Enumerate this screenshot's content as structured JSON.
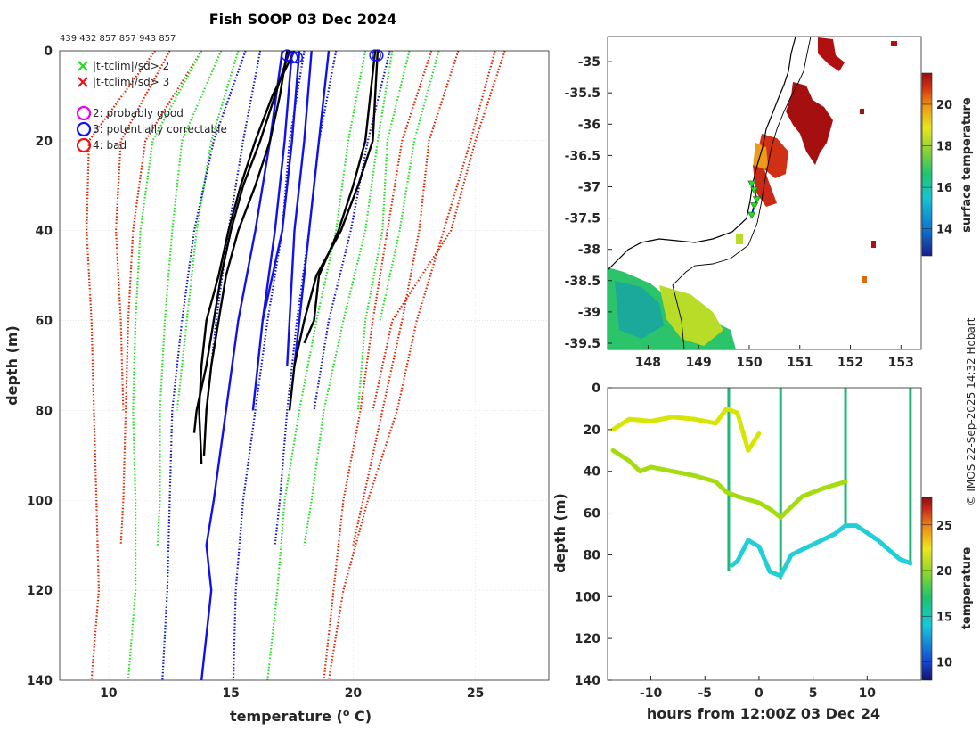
{
  "chart_data": [
    {
      "id": "profiles",
      "type": "line",
      "title": "Fish SOOP 03 Dec 2024",
      "subtitle": "439 432 857 857 943 857",
      "xlabel": "temperature (",
      "xlabel_sup": "o",
      "xlabel_tail": " C)",
      "ylabel": "depth (m)",
      "xlim": [
        8,
        28
      ],
      "ylim": [
        0,
        140
      ],
      "xticks": [
        10,
        15,
        20,
        25
      ],
      "yticks": [
        0,
        20,
        40,
        60,
        80,
        100,
        120,
        140
      ],
      "legend": [
        {
          "marker": "x",
          "color": "#22dd22",
          "label": "|t-tclim|/sd> 2"
        },
        {
          "marker": "x",
          "color": "#ee1111",
          "label": "|t-tclim|/sd> 3"
        },
        {
          "marker": "o",
          "color": "#ee00ee",
          "label": "2: probably good"
        },
        {
          "marker": "o",
          "color": "#1111ee",
          "label": "3: potentially correctable"
        },
        {
          "marker": "o",
          "color": "#ee1111",
          "label": "4: bad"
        }
      ],
      "flag_markers": [
        {
          "x": 17.3,
          "y": 1,
          "color": "#1111ee"
        },
        {
          "x": 17.5,
          "y": 1.5,
          "color": "#1111ee"
        },
        {
          "x": 17.7,
          "y": 1.5,
          "color": "#1111ee"
        },
        {
          "x": 20.9,
          "y": 1,
          "color": "#1111ee"
        },
        {
          "x": 21.0,
          "y": 1,
          "color": "#1111ee"
        }
      ],
      "series": [
        {
          "name": "clim-3sd-left-a",
          "style": "dotted",
          "color": "#dd2200",
          "depth": [
            0,
            20,
            40,
            60,
            80,
            100,
            120,
            140
          ],
          "temp": [
            11.9,
            9.2,
            9.1,
            9.3,
            9.4,
            9.5,
            9.6,
            9.3
          ]
        },
        {
          "name": "clim-3sd-left-b",
          "style": "dotted",
          "color": "#dd2200",
          "depth": [
            0,
            20,
            40,
            60,
            80
          ],
          "temp": [
            12.5,
            10.5,
            10.3,
            10.5,
            10.6
          ]
        },
        {
          "name": "clim-3sd-left-c",
          "style": "dotted",
          "color": "#dd2200",
          "depth": [
            0,
            20,
            40,
            60,
            80,
            100,
            110
          ],
          "temp": [
            13.8,
            11.5,
            11.0,
            10.8,
            10.7,
            10.6,
            10.5
          ]
        },
        {
          "name": "clim-2sd-left-a",
          "style": "dotted",
          "color": "#22dd22",
          "depth": [
            0,
            20,
            40,
            60,
            80,
            100,
            120,
            140
          ],
          "temp": [
            13.8,
            11.8,
            11.3,
            11.1,
            11.0,
            11.1,
            11.1,
            10.8
          ]
        },
        {
          "name": "clim-2sd-left-b",
          "style": "dotted",
          "color": "#22dd22",
          "depth": [
            0,
            20,
            40,
            60,
            80,
            100,
            110
          ],
          "temp": [
            14.6,
            13.0,
            12.6,
            12.3,
            12.1,
            12.1,
            12.0
          ]
        },
        {
          "name": "clim-2sd-left-c",
          "style": "dotted",
          "color": "#22dd22",
          "depth": [
            0,
            20,
            40,
            60,
            80
          ],
          "temp": [
            15.3,
            14.2,
            13.6,
            13.2,
            12.8
          ]
        },
        {
          "name": "clim-mean-a",
          "style": "dotted",
          "color": "#1111cc",
          "depth": [
            0,
            20,
            40,
            60,
            80,
            100,
            120,
            140
          ],
          "temp": [
            15.6,
            14.3,
            13.5,
            13.0,
            12.6,
            12.5,
            12.4,
            12.2
          ]
        },
        {
          "name": "clim-mean-b",
          "style": "dotted",
          "color": "#1111cc",
          "depth": [
            0,
            20,
            40,
            60,
            80
          ],
          "temp": [
            16.2,
            15.5,
            14.9,
            14.4,
            14.0
          ]
        },
        {
          "name": "clim-mean-c",
          "style": "dotted",
          "color": "#1111cc",
          "depth": [
            0,
            20,
            40,
            60,
            80,
            100,
            120,
            140
          ],
          "temp": [
            18.0,
            17.4,
            17.1,
            16.5,
            16.0,
            15.5,
            15.2,
            15.1
          ]
        },
        {
          "name": "clim-mean-d",
          "style": "dotted",
          "color": "#1111cc",
          "depth": [
            0,
            20,
            40,
            60,
            80,
            100,
            110
          ],
          "temp": [
            19.3,
            18.6,
            18.2,
            17.7,
            17.3,
            17.0,
            16.8
          ]
        },
        {
          "name": "clim-mean-e",
          "style": "dotted",
          "color": "#1111cc",
          "depth": [
            0,
            20,
            40,
            60,
            80
          ],
          "temp": [
            21.5,
            20.6,
            19.9,
            19.0,
            18.4
          ]
        },
        {
          "name": "clim-2sd-right-a",
          "style": "dotted",
          "color": "#22dd22",
          "depth": [
            0,
            20,
            40,
            60,
            80,
            100,
            120,
            140
          ],
          "temp": [
            20.5,
            19.8,
            19.3,
            18.5,
            17.8,
            17.2,
            16.9,
            16.5
          ]
        },
        {
          "name": "clim-2sd-right-b",
          "style": "dotted",
          "color": "#22dd22",
          "depth": [
            0,
            20,
            40,
            60,
            80,
            100,
            110
          ],
          "temp": [
            21.6,
            21.0,
            20.5,
            19.6,
            18.8,
            18.3,
            18.0
          ]
        },
        {
          "name": "clim-2sd-right-c",
          "style": "dotted",
          "color": "#22dd22",
          "depth": [
            0,
            20,
            40,
            60,
            80
          ],
          "temp": [
            22.3,
            21.4,
            21.2,
            20.5,
            20.2
          ]
        },
        {
          "name": "clim-2sd-right-d",
          "style": "dotted",
          "color": "#22dd22",
          "depth": [
            0,
            20,
            40,
            60
          ],
          "temp": [
            23.5,
            22.5,
            21.9,
            21.1
          ]
        },
        {
          "name": "clim-3sd-right-a",
          "style": "dotted",
          "color": "#dd2200",
          "depth": [
            0,
            20,
            40,
            60,
            80,
            100,
            120,
            140
          ],
          "temp": [
            23.2,
            22.0,
            21.4,
            20.8,
            20.3,
            19.6,
            19.2,
            18.8
          ]
        },
        {
          "name": "clim-3sd-right-b",
          "style": "dotted",
          "color": "#dd2200",
          "depth": [
            0,
            20,
            40,
            60,
            80,
            100,
            110
          ],
          "temp": [
            24.3,
            23.1,
            22.7,
            22.0,
            21.2,
            20.4,
            20.0
          ]
        },
        {
          "name": "clim-3sd-right-c",
          "style": "dotted",
          "color": "#dd2200",
          "depth": [
            0,
            20,
            40,
            60,
            80,
            100,
            120,
            140
          ],
          "temp": [
            25.8,
            24.8,
            23.7,
            22.6,
            21.8,
            20.6,
            19.6,
            19.0
          ]
        },
        {
          "name": "clim-3sd-right-d",
          "style": "dotted",
          "color": "#dd2200",
          "depth": [
            0,
            20,
            40,
            60,
            80
          ],
          "temp": [
            26.2,
            25.0,
            24.0,
            21.6,
            20.8
          ]
        },
        {
          "name": "clim-mean-solid-a",
          "style": "solid",
          "color": "#1111ee",
          "depth": [
            0,
            20,
            40,
            60,
            80,
            100,
            110,
            120,
            130,
            140
          ],
          "temp": [
            17.1,
            16.6,
            16.0,
            15.3,
            14.8,
            14.3,
            14.0,
            14.2,
            14.0,
            13.8
          ]
        },
        {
          "name": "clim-mean-solid-b",
          "style": "solid",
          "color": "#1111ee",
          "depth": [
            0,
            20,
            40,
            60,
            80
          ],
          "temp": [
            17.5,
            17.2,
            16.8,
            16.3,
            15.9
          ]
        },
        {
          "name": "clim-mean-solid-c",
          "style": "solid",
          "color": "#1111ee",
          "depth": [
            0,
            20,
            40,
            60
          ],
          "temp": [
            17.8,
            17.5,
            17.1,
            16.3
          ]
        },
        {
          "name": "clim-mean-solid-d",
          "style": "solid",
          "color": "#1111ee",
          "depth": [
            0,
            20,
            40,
            60,
            70
          ],
          "temp": [
            18.3,
            18.0,
            17.6,
            17.4,
            17.3
          ]
        },
        {
          "name": "clim-mean-solid-e",
          "style": "solid",
          "color": "#1111ee",
          "depth": [
            0,
            20,
            40,
            60,
            70
          ],
          "temp": [
            19.0,
            18.6,
            18.2,
            17.8,
            17.6
          ]
        },
        {
          "name": "profile-1",
          "style": "solid",
          "color": "#000000",
          "depth": [
            0,
            10,
            20,
            30,
            40,
            50,
            60,
            70,
            80,
            90
          ],
          "temp": [
            17.3,
            17.0,
            16.6,
            16.0,
            15.3,
            14.8,
            14.5,
            14.2,
            14.0,
            13.9
          ]
        },
        {
          "name": "profile-2",
          "style": "solid",
          "color": "#000000",
          "depth": [
            0,
            10,
            20,
            30,
            40,
            50,
            60,
            70,
            80,
            85
          ],
          "temp": [
            17.4,
            16.8,
            16.2,
            15.5,
            15.0,
            14.6,
            14.3,
            14.0,
            13.6,
            13.5
          ]
        },
        {
          "name": "profile-3",
          "style": "solid",
          "color": "#000000",
          "depth": [
            0,
            10,
            20,
            30,
            40,
            50,
            60,
            70,
            80,
            92
          ],
          "temp": [
            17.6,
            16.7,
            16.0,
            15.4,
            14.9,
            14.5,
            14.0,
            13.8,
            13.7,
            13.8
          ]
        },
        {
          "name": "profile-4",
          "style": "solid",
          "color": "#000000",
          "depth": [
            0,
            10,
            20,
            30,
            40,
            50,
            60,
            70,
            80
          ],
          "temp": [
            21.0,
            20.9,
            20.8,
            20.2,
            19.5,
            18.5,
            18.0,
            17.6,
            17.4
          ]
        },
        {
          "name": "profile-5",
          "style": "solid",
          "color": "#000000",
          "depth": [
            0,
            10,
            20,
            30,
            40,
            50,
            60,
            65
          ],
          "temp": [
            20.9,
            20.7,
            20.5,
            20.0,
            19.4,
            18.6,
            18.4,
            18.0
          ]
        }
      ]
    },
    {
      "id": "map",
      "type": "heatmap",
      "xlim": [
        147.2,
        153.4
      ],
      "ylim": [
        -39.6,
        -34.6
      ],
      "xticks": [
        148,
        149,
        150,
        151,
        152,
        153
      ],
      "yticks": [
        -35,
        -35.5,
        -36,
        -36.5,
        -37,
        -37.5,
        -38,
        -38.5,
        -39,
        -39.5
      ],
      "xtick_labels": [
        "148",
        "149",
        "150",
        "151",
        "152",
        "153"
      ],
      "ytick_labels": [
        "-35",
        "-35.5",
        "-36",
        "-36.5",
        "-37",
        "-37.5",
        "-38",
        "-38.5",
        "-39",
        "-39.5"
      ],
      "colorbar_label": "surface temperature",
      "colorbar_range": [
        12.7,
        21.5
      ],
      "colorbar_ticks": [
        14,
        16,
        18,
        20
      ],
      "colorbar_tick_labels": [
        "14",
        "16",
        "18",
        "20"
      ],
      "track": [
        [
          150.05,
          -36.95
        ],
        [
          150.1,
          -37.05
        ],
        [
          150.15,
          -37.2
        ],
        [
          150.1,
          -37.3
        ],
        [
          150.05,
          -37.45
        ]
      ]
    },
    {
      "id": "timeseries",
      "type": "scatter",
      "xlabel": "hours from 12:00Z 03 Dec 24",
      "ylabel": "depth (m)",
      "xlim": [
        -14,
        15
      ],
      "ylim": [
        0,
        140
      ],
      "xticks": [
        -10,
        -5,
        0,
        5,
        10
      ],
      "xtick_labels": [
        "-10",
        "-5",
        "0",
        "5",
        "10"
      ],
      "yticks": [
        0,
        20,
        40,
        60,
        80,
        100,
        120,
        140
      ],
      "colorbar_label": "temperature",
      "colorbar_range": [
        8,
        28
      ],
      "colorbar_ticks": [
        10,
        15,
        20,
        25
      ],
      "colorbar_tick_labels": [
        "10",
        "15",
        "20",
        "25"
      ],
      "series": [
        {
          "name": "trace-shallow",
          "color": "#d6e600",
          "hours": [
            -13.5,
            -12,
            -10,
            -8,
            -6,
            -4,
            -3,
            -2,
            -1,
            0
          ],
          "depth": [
            20,
            15,
            16,
            14,
            15,
            17,
            10,
            12,
            30,
            22
          ]
        },
        {
          "name": "trace-mid",
          "color": "#a5dc10",
          "hours": [
            -13.5,
            -12,
            -11,
            -10,
            -8,
            -6,
            -4,
            -3,
            -2,
            0,
            1,
            2,
            4,
            6,
            8
          ],
          "depth": [
            30,
            35,
            40,
            38,
            40,
            42,
            45,
            50,
            52,
            55,
            58,
            62,
            52,
            48,
            45
          ]
        },
        {
          "name": "trace-deep",
          "color": "#22cfd6",
          "hours": [
            -2.5,
            -2,
            -1,
            0,
            1,
            2,
            3,
            5,
            7,
            8,
            9,
            11,
            13,
            14
          ],
          "depth": [
            85,
            83,
            73,
            76,
            88,
            90,
            80,
            75,
            70,
            66,
            66,
            73,
            82,
            84
          ]
        }
      ],
      "casts": [
        {
          "hours": -2.8,
          "top": 0,
          "bottom": 88
        },
        {
          "hours": 2.0,
          "top": 0,
          "bottom": 92
        },
        {
          "hours": 8.0,
          "top": 0,
          "bottom": 66
        },
        {
          "hours": 14.0,
          "top": 0,
          "bottom": 85
        }
      ]
    }
  ],
  "credit": "© IMOS 22-Sep-2025 14:32 Hobart",
  "colors": {
    "axis": "#262626",
    "grid": "#d9d9d9",
    "land": "#000000"
  }
}
